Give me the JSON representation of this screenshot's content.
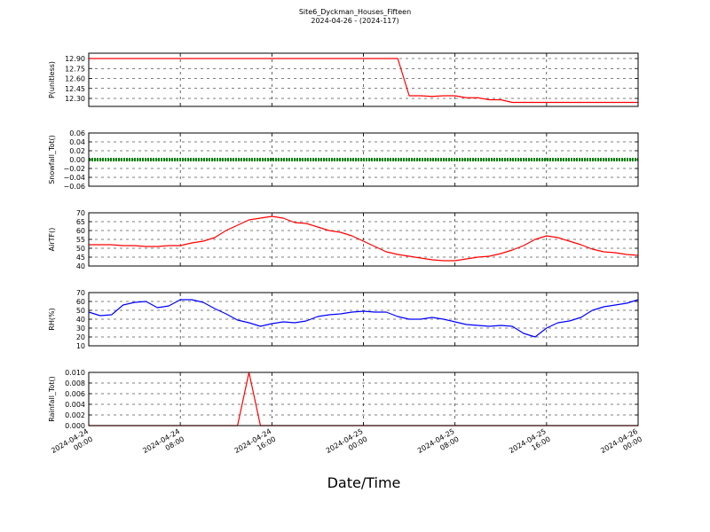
{
  "title": "Site6_Dyckman_Houses_Fifteen",
  "subtitle": "2024-04-26 - (2024-117)",
  "xlabel": "Date/Time",
  "xlim": [
    "2024-04-24 00:00",
    "2024-04-26 00:00"
  ],
  "xticks": [
    "2024-04-24 00:00",
    "2024-04-24 08:00",
    "2024-04-24 16:00",
    "2024-04-25 00:00",
    "2024-04-25 08:00",
    "2024-04-25 16:00",
    "2024-04-26 00:00"
  ],
  "x": [
    "2024-04-24 00:00",
    "2024-04-24 01:00",
    "2024-04-24 02:00",
    "2024-04-24 03:00",
    "2024-04-24 04:00",
    "2024-04-24 05:00",
    "2024-04-24 06:00",
    "2024-04-24 07:00",
    "2024-04-24 08:00",
    "2024-04-24 09:00",
    "2024-04-24 10:00",
    "2024-04-24 11:00",
    "2024-04-24 12:00",
    "2024-04-24 13:00",
    "2024-04-24 14:00",
    "2024-04-24 15:00",
    "2024-04-24 16:00",
    "2024-04-24 17:00",
    "2024-04-24 18:00",
    "2024-04-24 19:00",
    "2024-04-24 20:00",
    "2024-04-24 21:00",
    "2024-04-24 22:00",
    "2024-04-24 23:00",
    "2024-04-25 00:00",
    "2024-04-25 01:00",
    "2024-04-25 02:00",
    "2024-04-25 03:00",
    "2024-04-25 04:00",
    "2024-04-25 05:00",
    "2024-04-25 06:00",
    "2024-04-25 07:00",
    "2024-04-25 08:00",
    "2024-04-25 09:00",
    "2024-04-25 10:00",
    "2024-04-25 11:00",
    "2024-04-25 12:00",
    "2024-04-25 13:00",
    "2024-04-25 14:00",
    "2024-04-25 15:00",
    "2024-04-25 16:00",
    "2024-04-25 17:00",
    "2024-04-25 18:00",
    "2024-04-25 19:00",
    "2024-04-25 20:00",
    "2024-04-25 21:00",
    "2024-04-25 22:00",
    "2024-04-25 23:00",
    "2024-04-26 00:00"
  ],
  "grid": true,
  "chart_data": [
    {
      "type": "line",
      "ylabel": "P(unitless)",
      "ylim": [
        12.18,
        12.98
      ],
      "yticks": [
        {
          "value": 12.3,
          "label": "12.30"
        },
        12.45,
        {
          "value": 12.6,
          "label": "12.60"
        },
        12.75,
        {
          "value": 12.9,
          "label": "12.90"
        }
      ],
      "series": [
        {
          "name": "P",
          "color": "#ff0000",
          "style": "solid",
          "values": [
            12.9,
            12.9,
            12.9,
            12.9,
            12.9,
            12.9,
            12.9,
            12.9,
            12.9,
            12.9,
            12.9,
            12.9,
            12.9,
            12.9,
            12.9,
            12.9,
            12.9,
            12.9,
            12.9,
            12.9,
            12.9,
            12.9,
            12.9,
            12.9,
            12.9,
            12.9,
            12.9,
            12.9,
            12.34,
            12.34,
            12.33,
            12.34,
            12.34,
            12.31,
            12.31,
            12.28,
            12.28,
            12.24,
            12.24,
            12.24,
            12.24,
            12.24,
            12.24,
            12.24,
            12.24,
            12.24,
            12.24,
            12.24,
            12.24
          ]
        }
      ]
    },
    {
      "type": "line",
      "ylabel": "Snowfall_Tot()",
      "ylim": [
        -0.06,
        0.06
      ],
      "yticks": [
        {
          "value": -0.06,
          "label": "−0.06"
        },
        {
          "value": -0.04,
          "label": "−0.04"
        },
        {
          "value": -0.02,
          "label": "−0.02"
        },
        {
          "value": 0,
          "label": "0.00"
        },
        0.02,
        0.04,
        0.06
      ],
      "series": [
        {
          "name": "Snowfall_Tot",
          "color": "#008000",
          "style": "dotted",
          "values": [
            0,
            0,
            0,
            0,
            0,
            0,
            0,
            0,
            0,
            0,
            0,
            0,
            0,
            0,
            0,
            0,
            0,
            0,
            0,
            0,
            0,
            0,
            0,
            0,
            0,
            0,
            0,
            0,
            0,
            0,
            0,
            0,
            0,
            0,
            0,
            0,
            0,
            0,
            0,
            0,
            0,
            0,
            0,
            0,
            0,
            0,
            0,
            0,
            0
          ]
        }
      ]
    },
    {
      "type": "line",
      "ylabel": "AirTF()",
      "ylim": [
        40,
        70
      ],
      "yticks": [
        40,
        45,
        50,
        55,
        60,
        65,
        70
      ],
      "series": [
        {
          "name": "AirTF",
          "color": "#ff0000",
          "style": "solid",
          "values": [
            52,
            52,
            52,
            51.5,
            51.5,
            51,
            51,
            51.5,
            51.5,
            53,
            54,
            56,
            60,
            63,
            66,
            67,
            68,
            67,
            64.5,
            64,
            62,
            60,
            59,
            57,
            54,
            51,
            48,
            46.5,
            45.5,
            44.5,
            43.5,
            43,
            43,
            44,
            45,
            45.5,
            47,
            49,
            51.5,
            55,
            57,
            56,
            54,
            52,
            49.5,
            48,
            47.5,
            46.5,
            46
          ]
        }
      ]
    },
    {
      "type": "line",
      "ylabel": "RH(%)",
      "ylim": [
        10,
        70
      ],
      "yticks": [
        10,
        20,
        30,
        40,
        50,
        60,
        70
      ],
      "series": [
        {
          "name": "RH",
          "color": "#0000ff",
          "style": "solid",
          "values": [
            48,
            44,
            45,
            56,
            59,
            60,
            53,
            55,
            62,
            62,
            59,
            52,
            46,
            39,
            36,
            32,
            35,
            37,
            36,
            38,
            43,
            45,
            46,
            48,
            49,
            48,
            48,
            43,
            40,
            40,
            42,
            40,
            37,
            34,
            33,
            32,
            33,
            32,
            24,
            20,
            30,
            36,
            38,
            42,
            50,
            54,
            56,
            58,
            62
          ]
        }
      ]
    },
    {
      "type": "line",
      "ylabel": "Rainfall_Tot()",
      "ylim": [
        0,
        0.01
      ],
      "yticks": [
        {
          "value": 0,
          "label": "0.000"
        },
        0.002,
        0.004,
        0.006,
        0.008,
        {
          "value": 0.01,
          "label": "0.010"
        }
      ],
      "series": [
        {
          "name": "Rainfall_Tot",
          "color": "#ff0000",
          "style": "solid",
          "values": [
            0,
            0,
            0,
            0,
            0,
            0,
            0,
            0,
            0,
            0,
            0,
            0,
            0,
            0,
            0.01,
            0,
            0,
            0,
            0,
            0,
            0,
            0,
            0,
            0,
            0,
            0,
            0,
            0,
            0,
            0,
            0,
            0,
            0,
            0,
            0,
            0,
            0,
            0,
            0,
            0,
            0,
            0,
            0,
            0,
            0,
            0,
            0,
            0,
            0
          ]
        }
      ]
    }
  ]
}
